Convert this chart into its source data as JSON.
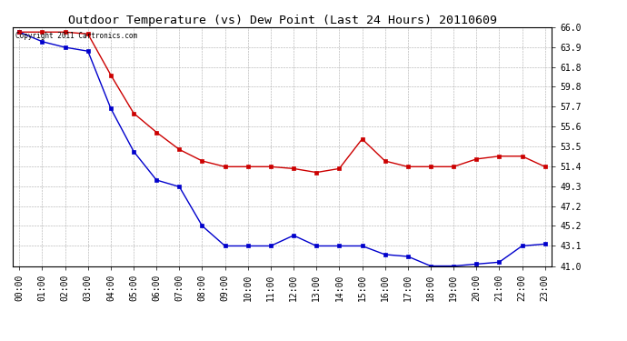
{
  "title": "Outdoor Temperature (vs) Dew Point (Last 24 Hours) 20110609",
  "copyright_text": "Copyright 2011 Cartronics.com",
  "x_labels": [
    "00:00",
    "01:00",
    "02:00",
    "03:00",
    "04:00",
    "05:00",
    "06:00",
    "07:00",
    "08:00",
    "09:00",
    "10:00",
    "11:00",
    "12:00",
    "13:00",
    "14:00",
    "15:00",
    "16:00",
    "17:00",
    "18:00",
    "19:00",
    "20:00",
    "21:00",
    "22:00",
    "23:00"
  ],
  "temp_data": [
    65.5,
    64.5,
    63.9,
    63.5,
    57.5,
    53.0,
    50.0,
    49.3,
    45.2,
    43.1,
    43.1,
    43.1,
    44.2,
    43.1,
    43.1,
    43.1,
    42.2,
    42.0,
    41.0,
    41.0,
    41.2,
    41.4,
    43.1,
    43.3
  ],
  "dew_data": [
    65.5,
    65.5,
    65.5,
    65.3,
    61.0,
    57.0,
    55.0,
    53.2,
    52.0,
    51.4,
    51.4,
    51.4,
    51.2,
    50.8,
    51.2,
    54.3,
    52.0,
    51.4,
    51.4,
    51.4,
    52.2,
    52.5,
    52.5,
    51.4
  ],
  "temp_color": "#0000cc",
  "dew_color": "#cc0000",
  "bg_color": "#ffffff",
  "grid_color": "#aaaaaa",
  "ylim_min": 41.0,
  "ylim_max": 66.0,
  "ytick_values": [
    41.0,
    43.1,
    45.2,
    47.2,
    49.3,
    51.4,
    53.5,
    55.6,
    57.7,
    59.8,
    61.8,
    63.9,
    66.0
  ],
  "ytick_labels": [
    "41.0",
    "43.1",
    "45.2",
    "47.2",
    "49.3",
    "51.4",
    "53.5",
    "55.6",
    "57.7",
    "59.8",
    "61.8",
    "63.9",
    "66.0"
  ],
  "title_fontsize": 9.5,
  "tick_fontsize": 7,
  "copyright_fontsize": 5.5,
  "line_width": 1.0,
  "marker_size": 2.5
}
